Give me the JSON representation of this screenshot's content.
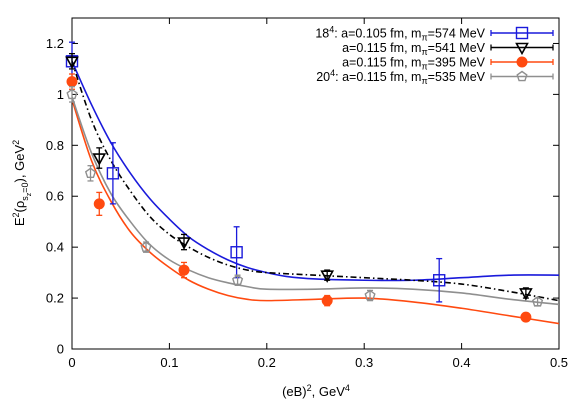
{
  "chart_data": {
    "type": "scatter",
    "xlabel_base": "(eB)",
    "xlabel_sup1": "2",
    "xlabel_mid": ", GeV",
    "xlabel_sup2": "4",
    "ylabel_main": "E",
    "ylabel_sup": "2",
    "ylabel_paren_open": "(ρ",
    "ylabel_sub1": "s",
    "ylabel_sub2": "z",
    "ylabel_sub3": "=0",
    "ylabel_paren_close": "), GeV",
    "ylabel_sup2": "2",
    "xlim": [
      0,
      0.5
    ],
    "ylim": [
      0,
      1.3
    ],
    "x_ticks": [
      0,
      0.1,
      0.2,
      0.3,
      0.4,
      0.5
    ],
    "x_tick_labels": [
      "0",
      "0.1",
      "0.2",
      "0.3",
      "0.4",
      "0.5"
    ],
    "y_ticks": [
      0,
      0.2,
      0.4,
      0.6,
      0.8,
      1.0,
      1.2
    ],
    "y_tick_labels": [
      "0",
      "0.2",
      "0.4",
      "0.6",
      "0.8",
      "1",
      "1.2"
    ],
    "grid": false,
    "legend_position": "top-right",
    "series": [
      {
        "legend_parts": [
          "18",
          "4",
          ": a=0.105 fm, m",
          "π",
          "=574 MeV"
        ],
        "color": "#1a1adb",
        "marker": "open-square",
        "curve_style": "solid",
        "points": [
          {
            "x": 0.0,
            "y": 1.13,
            "err": 0.075
          },
          {
            "x": 0.042,
            "y": 0.69,
            "err": 0.12
          },
          {
            "x": 0.169,
            "y": 0.38,
            "err": 0.1
          },
          {
            "x": 0.377,
            "y": 0.27,
            "err": 0.085
          }
        ],
        "curve": [
          [
            0,
            1.13
          ],
          [
            0.02,
            0.96
          ],
          [
            0.04,
            0.81
          ],
          [
            0.06,
            0.69
          ],
          [
            0.08,
            0.59
          ],
          [
            0.1,
            0.51
          ],
          [
            0.12,
            0.44
          ],
          [
            0.14,
            0.39
          ],
          [
            0.16,
            0.35
          ],
          [
            0.18,
            0.32
          ],
          [
            0.2,
            0.3
          ],
          [
            0.22,
            0.285
          ],
          [
            0.25,
            0.275
          ],
          [
            0.3,
            0.27
          ],
          [
            0.35,
            0.27
          ],
          [
            0.4,
            0.28
          ],
          [
            0.45,
            0.29
          ],
          [
            0.5,
            0.29
          ]
        ]
      },
      {
        "legend_parts": [
          "",
          "",
          "a=0.115 fm, m",
          "π",
          "=541 MeV"
        ],
        "color": "#000000",
        "marker": "open-triangle-down",
        "curve_style": "dash-dot",
        "points": [
          {
            "x": 0.0,
            "y": 1.13,
            "err": 0.03
          },
          {
            "x": 0.028,
            "y": 0.75,
            "err": 0.04
          },
          {
            "x": 0.115,
            "y": 0.42,
            "err": 0.03
          },
          {
            "x": 0.262,
            "y": 0.29,
            "err": 0.02
          },
          {
            "x": 0.466,
            "y": 0.22,
            "err": 0.02
          }
        ],
        "curve": [
          [
            0,
            1.13
          ],
          [
            0.02,
            0.9
          ],
          [
            0.04,
            0.74
          ],
          [
            0.06,
            0.62
          ],
          [
            0.08,
            0.52
          ],
          [
            0.1,
            0.45
          ],
          [
            0.12,
            0.4
          ],
          [
            0.14,
            0.36
          ],
          [
            0.16,
            0.33
          ],
          [
            0.18,
            0.31
          ],
          [
            0.2,
            0.3
          ],
          [
            0.25,
            0.29
          ],
          [
            0.3,
            0.28
          ],
          [
            0.35,
            0.27
          ],
          [
            0.4,
            0.255
          ],
          [
            0.45,
            0.225
          ],
          [
            0.5,
            0.19
          ]
        ]
      },
      {
        "legend_parts": [
          "",
          "",
          "a=0.115 fm, m",
          "π",
          "=395 MeV"
        ],
        "color": "#ff4a10",
        "marker": "filled-circle",
        "curve_style": "solid",
        "points": [
          {
            "x": 0.0,
            "y": 1.05,
            "err": 0.03
          },
          {
            "x": 0.028,
            "y": 0.57,
            "err": 0.045
          },
          {
            "x": 0.115,
            "y": 0.31,
            "err": 0.03
          },
          {
            "x": 0.262,
            "y": 0.19,
            "err": 0.02
          },
          {
            "x": 0.466,
            "y": 0.125,
            "err": 0.01
          }
        ],
        "curve": [
          [
            0,
            0.98
          ],
          [
            0.02,
            0.74
          ],
          [
            0.04,
            0.58
          ],
          [
            0.06,
            0.46
          ],
          [
            0.08,
            0.38
          ],
          [
            0.1,
            0.32
          ],
          [
            0.12,
            0.27
          ],
          [
            0.14,
            0.235
          ],
          [
            0.16,
            0.21
          ],
          [
            0.18,
            0.195
          ],
          [
            0.2,
            0.19
          ],
          [
            0.25,
            0.195
          ],
          [
            0.3,
            0.2
          ],
          [
            0.35,
            0.185
          ],
          [
            0.4,
            0.16
          ],
          [
            0.45,
            0.13
          ],
          [
            0.5,
            0.1
          ]
        ]
      },
      {
        "legend_parts": [
          "20",
          "4",
          ": a=0.115 fm, m",
          "π",
          "=535 MeV"
        ],
        "color": "#8f8f8f",
        "marker": "open-pentagon",
        "curve_style": "solid",
        "points": [
          {
            "x": 0.0,
            "y": 1.0,
            "err": 0.03
          },
          {
            "x": 0.019,
            "y": 0.69,
            "err": 0.03
          },
          {
            "x": 0.076,
            "y": 0.4,
            "err": 0.02
          },
          {
            "x": 0.17,
            "y": 0.27,
            "err": 0.02
          },
          {
            "x": 0.306,
            "y": 0.21,
            "err": 0.02
          },
          {
            "x": 0.478,
            "y": 0.185,
            "err": 0.015
          }
        ],
        "curve": [
          [
            0,
            0.99
          ],
          [
            0.02,
            0.77
          ],
          [
            0.04,
            0.61
          ],
          [
            0.06,
            0.5
          ],
          [
            0.08,
            0.41
          ],
          [
            0.1,
            0.35
          ],
          [
            0.12,
            0.31
          ],
          [
            0.14,
            0.28
          ],
          [
            0.16,
            0.26
          ],
          [
            0.18,
            0.245
          ],
          [
            0.2,
            0.235
          ],
          [
            0.25,
            0.235
          ],
          [
            0.3,
            0.24
          ],
          [
            0.35,
            0.235
          ],
          [
            0.4,
            0.22
          ],
          [
            0.45,
            0.195
          ],
          [
            0.5,
            0.175
          ]
        ]
      }
    ]
  }
}
